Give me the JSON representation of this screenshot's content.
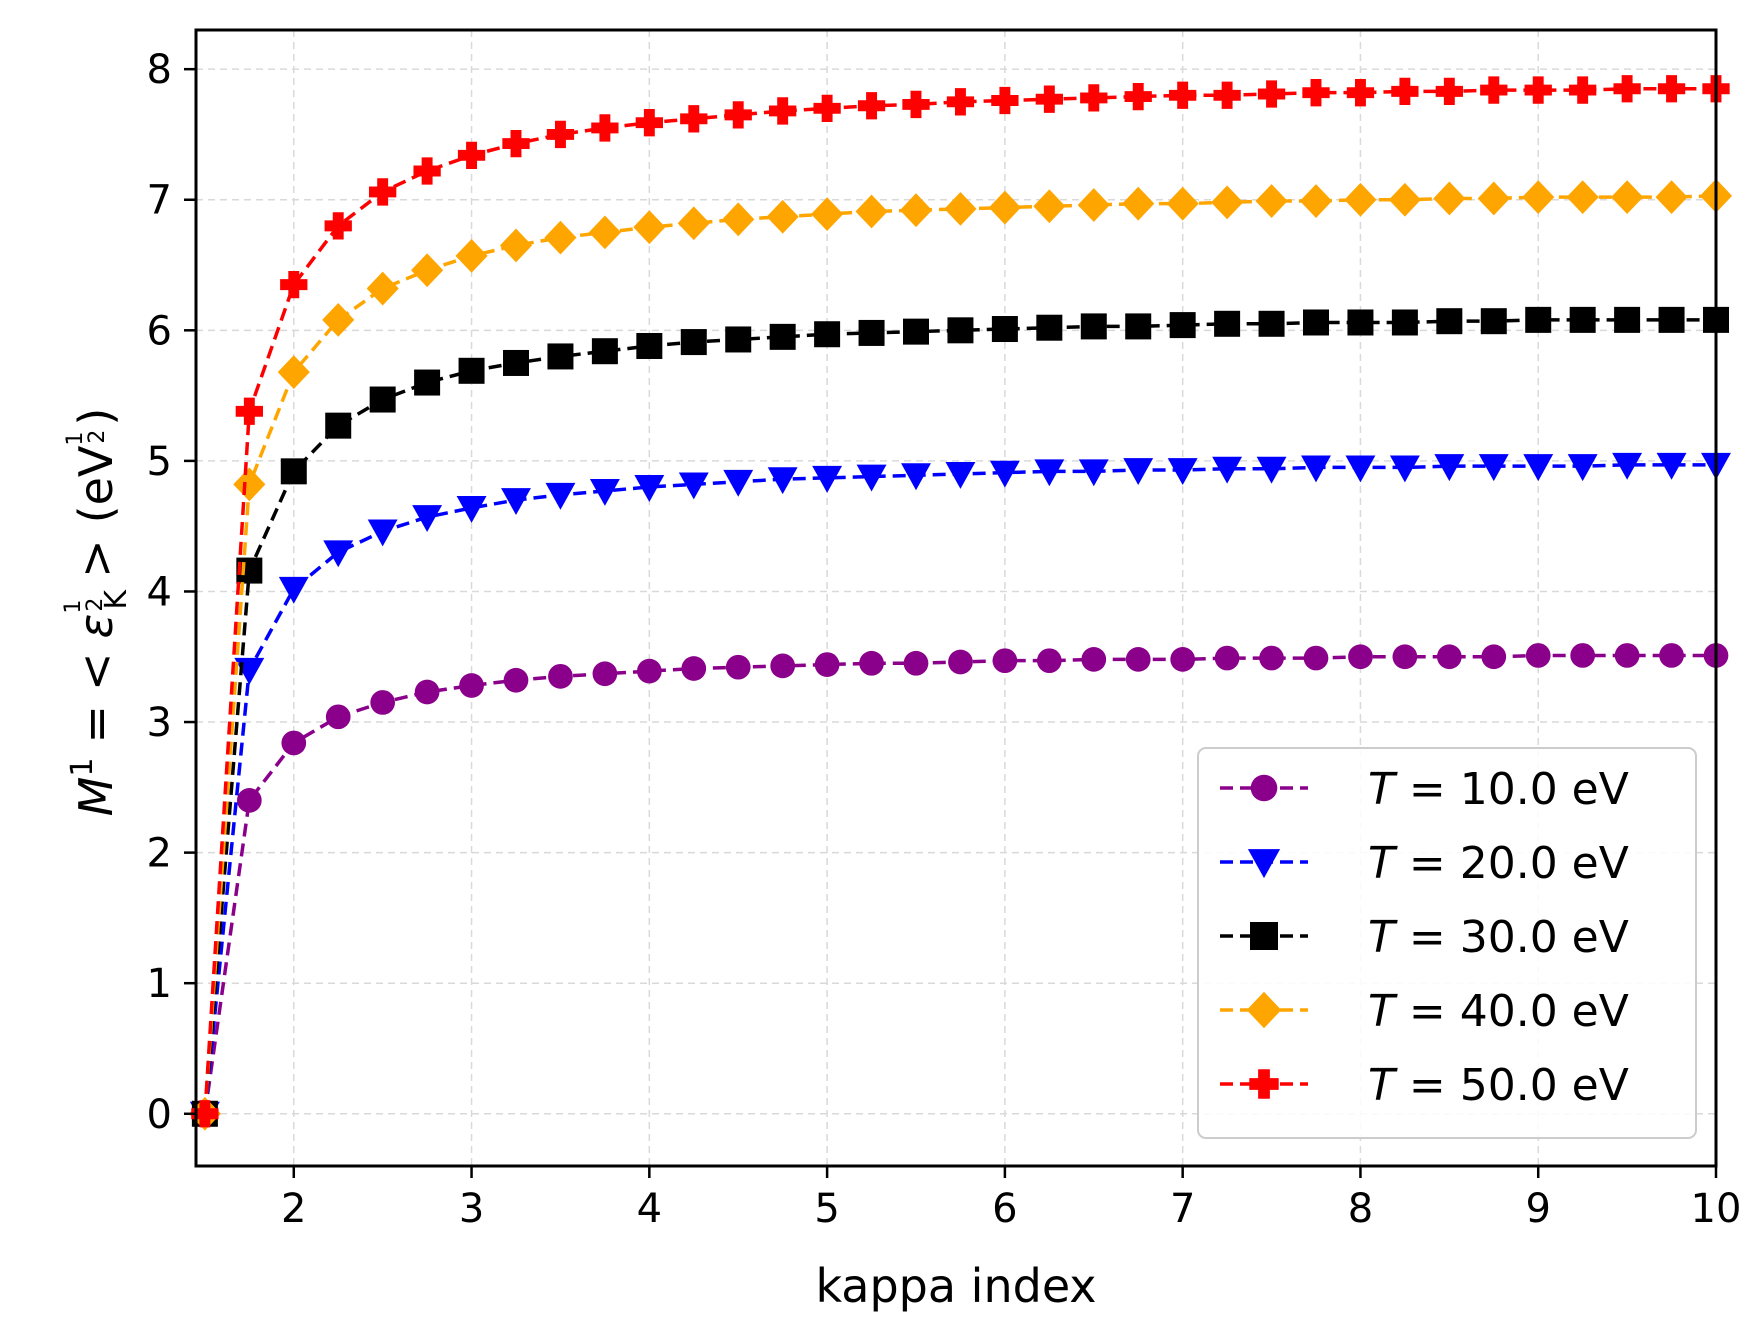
{
  "chart_data": {
    "type": "line",
    "title": "",
    "xlabel": "kappa index",
    "ylabel": {
      "main": "M",
      "superscript": "1",
      "equals": "=",
      "lt": "<",
      "epsilon": "ε",
      "subscript": "K",
      "gt": ">",
      "unit_open": "(eV",
      "unit_close": ")",
      "frac_num": "1",
      "frac_den": "2"
    },
    "xlim": [
      1.45,
      10
    ],
    "ylim": [
      -0.4,
      8.3
    ],
    "xticks": [
      2,
      3,
      4,
      5,
      6,
      7,
      8,
      9,
      10
    ],
    "yticks": [
      0,
      1,
      2,
      3,
      4,
      5,
      6,
      7,
      8
    ],
    "grid": true,
    "legend_position": "lower-right",
    "x": [
      1.5,
      1.75,
      2.0,
      2.25,
      2.5,
      2.75,
      3.0,
      3.25,
      3.5,
      3.75,
      4.0,
      4.25,
      4.5,
      4.75,
      5.0,
      5.25,
      5.5,
      5.75,
      6.0,
      6.25,
      6.5,
      6.75,
      7.0,
      7.25,
      7.5,
      7.75,
      8.0,
      8.25,
      8.5,
      8.75,
      9.0,
      9.25,
      9.5,
      9.75,
      10.0
    ],
    "series": [
      {
        "name": "T = 10.0 eV",
        "legend_prefix": "T",
        "legend_suffix": " = 10.0 eV",
        "color": "#8b008b",
        "marker": "circle",
        "values": [
          0,
          2.4,
          2.84,
          3.04,
          3.15,
          3.23,
          3.28,
          3.32,
          3.35,
          3.37,
          3.39,
          3.41,
          3.42,
          3.43,
          3.44,
          3.45,
          3.45,
          3.46,
          3.47,
          3.47,
          3.48,
          3.48,
          3.48,
          3.49,
          3.49,
          3.49,
          3.5,
          3.5,
          3.5,
          3.5,
          3.51,
          3.51,
          3.51,
          3.51,
          3.51
        ]
      },
      {
        "name": "T = 20.0 eV",
        "legend_prefix": "T",
        "legend_suffix": " = 20.0 eV",
        "color": "#0000ff",
        "marker": "triangle-down",
        "values": [
          0,
          3.4,
          4.02,
          4.3,
          4.46,
          4.57,
          4.64,
          4.7,
          4.74,
          4.77,
          4.8,
          4.82,
          4.84,
          4.86,
          4.87,
          4.88,
          4.89,
          4.9,
          4.91,
          4.92,
          4.92,
          4.93,
          4.93,
          4.94,
          4.94,
          4.95,
          4.95,
          4.95,
          4.96,
          4.96,
          4.96,
          4.96,
          4.97,
          4.97,
          4.97
        ]
      },
      {
        "name": "T = 30.0 eV",
        "legend_prefix": "T",
        "legend_suffix": " = 30.0 eV",
        "color": "#000000",
        "marker": "square",
        "values": [
          0,
          4.16,
          4.92,
          5.27,
          5.47,
          5.6,
          5.69,
          5.75,
          5.8,
          5.84,
          5.88,
          5.91,
          5.93,
          5.95,
          5.97,
          5.98,
          5.99,
          6.0,
          6.01,
          6.02,
          6.03,
          6.03,
          6.04,
          6.05,
          6.05,
          6.06,
          6.06,
          6.06,
          6.07,
          6.07,
          6.08,
          6.08,
          6.08,
          6.08,
          6.08
        ]
      },
      {
        "name": "T = 40.0 eV",
        "legend_prefix": "T",
        "legend_suffix": " = 40.0 eV",
        "color": "#ffa500",
        "marker": "diamond",
        "values": [
          0,
          4.82,
          5.68,
          6.08,
          6.32,
          6.46,
          6.57,
          6.65,
          6.71,
          6.75,
          6.79,
          6.82,
          6.85,
          6.87,
          6.89,
          6.91,
          6.92,
          6.93,
          6.94,
          6.95,
          6.96,
          6.97,
          6.97,
          6.98,
          6.99,
          6.99,
          7.0,
          7.0,
          7.01,
          7.01,
          7.02,
          7.02,
          7.02,
          7.02,
          7.03
        ]
      },
      {
        "name": "T = 50.0 eV",
        "legend_prefix": "T",
        "legend_suffix": " = 50.0 eV",
        "color": "#ff0000",
        "marker": "plus",
        "values": [
          0,
          5.38,
          6.35,
          6.8,
          7.06,
          7.22,
          7.34,
          7.43,
          7.5,
          7.55,
          7.59,
          7.62,
          7.65,
          7.68,
          7.7,
          7.72,
          7.73,
          7.75,
          7.76,
          7.77,
          7.78,
          7.79,
          7.8,
          7.8,
          7.81,
          7.82,
          7.82,
          7.83,
          7.83,
          7.84,
          7.84,
          7.84,
          7.85,
          7.85,
          7.85
        ]
      }
    ]
  }
}
